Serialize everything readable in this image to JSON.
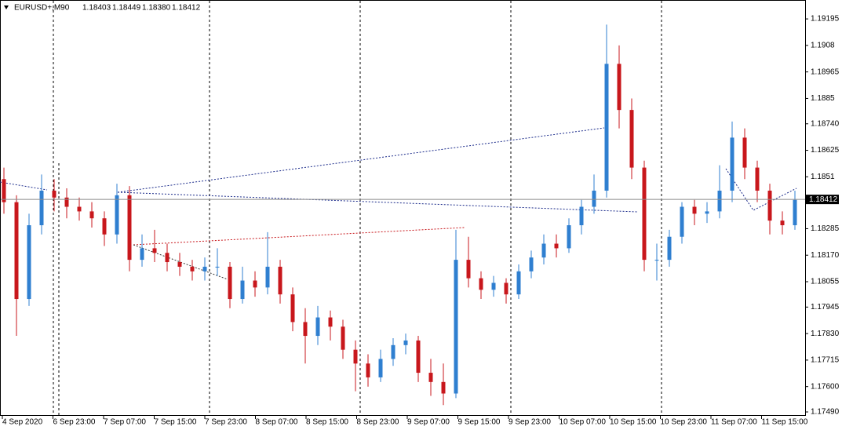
{
  "chart_data": {
    "type": "candlestick",
    "header": {
      "symbol": "EURUSD+,M90",
      "ohlc": [
        "1.18403",
        "1.18449",
        "1.18380",
        "1.18412"
      ]
    },
    "current_price": 1.18412,
    "current_price_label": "1.18412",
    "up_color": "#2f7fd0",
    "down_color": "#c8171c",
    "ylim": [
      1.17473,
      1.19277
    ],
    "yticks": [
      1.19195,
      1.1908,
      1.18965,
      1.1885,
      {
        "value": 1.1874,
        "label": "1.18740"
      },
      1.18625,
      1.1851,
      1.18285,
      {
        "value": 1.1817,
        "label": "1.18170"
      },
      1.18055,
      1.17945,
      {
        "value": 1.1783,
        "label": "1.17830"
      },
      1.17715,
      {
        "value": 1.176,
        "label": "1.17600"
      },
      {
        "value": 1.1749,
        "label": "1.17490"
      }
    ],
    "xlabels": [
      "4 Sep 2020",
      "6 Sep 23:00",
      "7 Sep 07:00",
      "7 Sep 15:00",
      "7 Sep 23:00",
      "8 Sep 07:00",
      "8 Sep 15:00",
      "8 Sep 23:00",
      "9 Sep 07:00",
      "9 Sep 15:00",
      "9 Sep 23:00",
      "10 Sep 07:00",
      "10 Sep 15:00",
      "10 Sep 23:00",
      "11 Sep 07:00",
      "11 Sep 15:00"
    ],
    "candles": [
      [
        1.185,
        1.1855,
        1.1835,
        1.184
      ],
      [
        1.184,
        1.1843,
        1.1782,
        1.1798
      ],
      [
        1.1798,
        1.1835,
        1.1795,
        1.183
      ],
      [
        1.183,
        1.1852,
        1.1826,
        1.1845
      ],
      [
        1.1845,
        1.185,
        1.1836,
        1.1842
      ],
      [
        1.1842,
        1.1846,
        1.1833,
        1.1838
      ],
      [
        1.1838,
        1.1842,
        1.1832,
        1.1836
      ],
      [
        1.1836,
        1.184,
        1.1829,
        1.1833
      ],
      [
        1.1833,
        1.1836,
        1.1821,
        1.1826
      ],
      [
        1.1826,
        1.1848,
        1.1822,
        1.1843
      ],
      [
        1.1843,
        1.1847,
        1.181,
        1.1815
      ],
      [
        1.1815,
        1.1826,
        1.1812,
        1.182
      ],
      [
        1.182,
        1.1828,
        1.1814,
        1.1818
      ],
      [
        1.1818,
        1.1822,
        1.181,
        1.1814
      ],
      [
        1.1814,
        1.1818,
        1.1808,
        1.1812
      ],
      [
        1.1812,
        1.1815,
        1.1806,
        1.181
      ],
      [
        1.181,
        1.1816,
        1.1806,
        1.1812
      ],
      [
        1.1812,
        1.182,
        1.1808,
        1.1812
      ],
      [
        1.1812,
        1.1814,
        1.1794,
        1.1798
      ],
      [
        1.1798,
        1.1812,
        1.1796,
        1.1806
      ],
      [
        1.1806,
        1.181,
        1.1799,
        1.1803
      ],
      [
        1.1803,
        1.1827,
        1.18,
        1.1812
      ],
      [
        1.1812,
        1.1815,
        1.1796,
        1.18
      ],
      [
        1.18,
        1.1803,
        1.1784,
        1.1788
      ],
      [
        1.1788,
        1.1794,
        1.177,
        1.1782
      ],
      [
        1.1782,
        1.1795,
        1.1778,
        1.179
      ],
      [
        1.179,
        1.1793,
        1.178,
        1.1786
      ],
      [
        1.1786,
        1.1789,
        1.1772,
        1.1776
      ],
      [
        1.1776,
        1.178,
        1.1758,
        1.177
      ],
      [
        1.177,
        1.1774,
        1.176,
        1.1764
      ],
      [
        1.1764,
        1.1776,
        1.1762,
        1.1772
      ],
      [
        1.1772,
        1.1781,
        1.1769,
        1.1778
      ],
      [
        1.1778,
        1.1783,
        1.1774,
        1.178
      ],
      [
        1.178,
        1.1782,
        1.1762,
        1.1766
      ],
      [
        1.1766,
        1.1772,
        1.1756,
        1.1762
      ],
      [
        1.1762,
        1.177,
        1.1752,
        1.1757
      ],
      [
        1.1757,
        1.1828,
        1.1755,
        1.1815
      ],
      [
        1.1815,
        1.1825,
        1.1803,
        1.1807
      ],
      [
        1.1807,
        1.181,
        1.1798,
        1.1802
      ],
      [
        1.1802,
        1.1808,
        1.1799,
        1.1805
      ],
      [
        1.1805,
        1.1807,
        1.1796,
        1.18
      ],
      [
        1.18,
        1.1813,
        1.1798,
        1.181
      ],
      [
        1.181,
        1.1819,
        1.1807,
        1.1816
      ],
      [
        1.1816,
        1.1826,
        1.1813,
        1.1822
      ],
      [
        1.1822,
        1.1826,
        1.1816,
        1.182
      ],
      [
        1.182,
        1.1833,
        1.1818,
        1.183
      ],
      [
        1.183,
        1.1841,
        1.1826,
        1.1838
      ],
      [
        1.1838,
        1.1852,
        1.1835,
        1.1845
      ],
      [
        1.1845,
        1.1917,
        1.1842,
        1.19
      ],
      [
        1.19,
        1.1908,
        1.1872,
        1.188
      ],
      [
        1.188,
        1.1885,
        1.185,
        1.1855
      ],
      [
        1.1855,
        1.1858,
        1.181,
        1.1815
      ],
      [
        1.1815,
        1.1822,
        1.1806,
        1.1815
      ],
      [
        1.1815,
        1.1828,
        1.1812,
        1.1825
      ],
      [
        1.1825,
        1.184,
        1.1822,
        1.1838
      ],
      [
        1.1838,
        1.1841,
        1.183,
        1.1835
      ],
      [
        1.1835,
        1.184,
        1.1831,
        1.1836
      ],
      [
        1.1836,
        1.1856,
        1.1833,
        1.1845
      ],
      [
        1.1845,
        1.1875,
        1.184,
        1.1868
      ],
      [
        1.1868,
        1.1872,
        1.185,
        1.1855
      ],
      [
        1.1855,
        1.1858,
        1.184,
        1.1845
      ],
      [
        1.1845,
        1.1848,
        1.1826,
        1.1832
      ],
      [
        1.1832,
        1.1836,
        1.1826,
        1.183
      ],
      [
        1.183,
        1.1845,
        1.1828,
        1.1841
      ]
    ]
  }
}
